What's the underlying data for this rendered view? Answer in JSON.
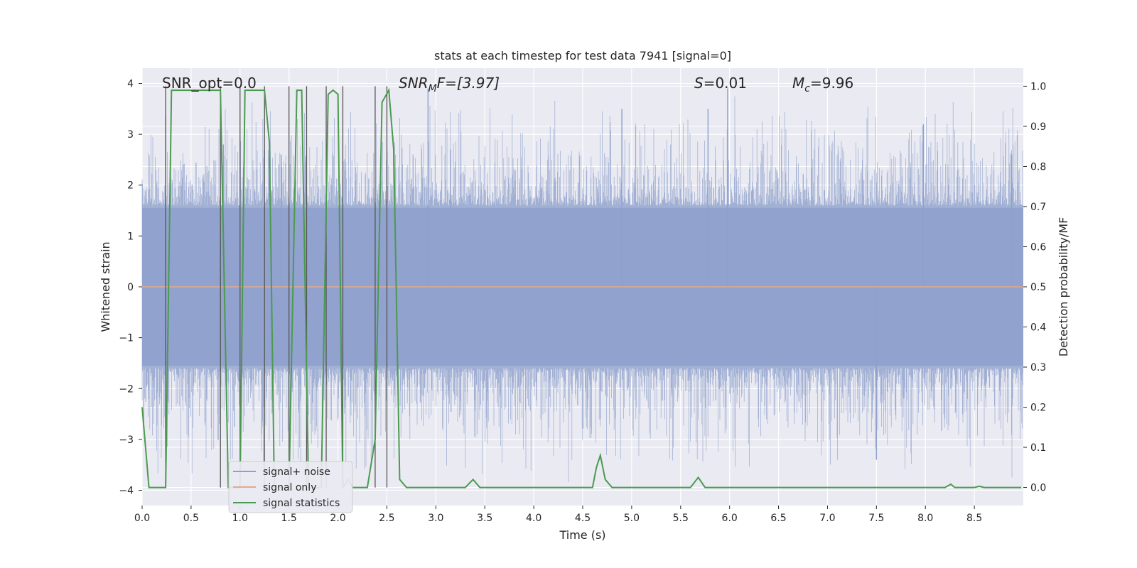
{
  "chart_data": {
    "type": "line",
    "title": "stats at each timestep for test data 7941 [signal=0]",
    "xlabel": "Time (s)",
    "ylabel_left": "Whitened strain",
    "ylabel_right": "Detection probability/MF",
    "xlim": [
      0.0,
      9.0
    ],
    "ylim_left": [
      -4.3,
      4.3
    ],
    "ylim_right": [
      -0.045,
      1.045
    ],
    "x_ticks": [
      0.0,
      0.5,
      1.0,
      1.5,
      2.0,
      2.5,
      3.0,
      3.5,
      4.0,
      4.5,
      5.0,
      5.5,
      6.0,
      6.5,
      7.0,
      7.5,
      8.0,
      8.5
    ],
    "x_tick_labels": [
      "0.0",
      "0.5",
      "1.0",
      "1.5",
      "2.0",
      "2.5",
      "3.0",
      "3.5",
      "4.0",
      "4.5",
      "5.0",
      "5.5",
      "6.0",
      "6.5",
      "7.0",
      "7.5",
      "8.0",
      "8.5"
    ],
    "y_left_ticks": [
      4,
      3,
      2,
      1,
      0,
      -1,
      -2,
      -3,
      -4
    ],
    "y_left_tick_labels": [
      "4",
      "3",
      "2",
      "1",
      "0",
      "−1",
      "−2",
      "−3",
      "−4"
    ],
    "y_right_ticks": [
      1.0,
      0.9,
      0.8,
      0.7,
      0.6,
      0.5,
      0.4,
      0.3,
      0.2,
      0.1,
      0.0
    ],
    "y_right_tick_labels": [
      "1.0",
      "0.9",
      "0.8",
      "0.7",
      "0.6",
      "0.5",
      "0.4",
      "0.3",
      "0.2",
      "0.1",
      "0.0"
    ],
    "annotations": {
      "snr_opt": "SNR_opt=0.0",
      "snr_mf_base": "SNR",
      "snr_mf_sub": "M",
      "snr_mf_rest": "F=[3.97]",
      "s_label": "S",
      "s_value": "=0.01",
      "mc_base": "M",
      "mc_sub": "c",
      "mc_value": "=9.96"
    },
    "vertical_lines_x": [
      0.24,
      0.8,
      1.0,
      1.25,
      1.5,
      1.68,
      1.88,
      2.05,
      2.38,
      2.5
    ],
    "series": [
      {
        "name": "signal+ noise",
        "color": "#8da0cb",
        "axis": "left",
        "kind": "noise-band",
        "envelope_typical": 1.6,
        "envelope_peak": 3.9,
        "spike_times": [
          0.83,
          1.42,
          2.92,
          3.15,
          4.9,
          5.78,
          5.98,
          7.5,
          7.98,
          8.88
        ],
        "spike_values": [
          2.8,
          2.6,
          3.9,
          2.7,
          3.5,
          3.5,
          3.9,
          -3.4,
          3.2,
          2.6
        ]
      },
      {
        "name": "signal only",
        "color": "#e5a98a",
        "axis": "left",
        "kind": "flat",
        "value": 0.0
      },
      {
        "name": "signal statistics",
        "color": "#4c9a50",
        "axis": "right",
        "kind": "line",
        "x": [
          0.0,
          0.07,
          0.12,
          0.24,
          0.3,
          0.8,
          0.88,
          0.93,
          1.0,
          1.05,
          1.1,
          1.25,
          1.3,
          1.35,
          1.5,
          1.58,
          1.63,
          1.7,
          1.76,
          1.83,
          1.9,
          1.95,
          2.0,
          2.05,
          2.11,
          2.15,
          2.2,
          2.3,
          2.38,
          2.45,
          2.52,
          2.57,
          2.63,
          2.7,
          3.3,
          3.38,
          3.45,
          4.6,
          4.64,
          4.68,
          4.73,
          4.8,
          5.6,
          5.68,
          5.75,
          8.2,
          8.26,
          8.3,
          8.5,
          8.55,
          8.6,
          8.98
        ],
        "y": [
          0.2,
          0.0,
          0.0,
          0.0,
          0.99,
          0.99,
          0.0,
          0.0,
          0.0,
          0.99,
          0.99,
          0.99,
          0.86,
          0.0,
          0.0,
          0.99,
          0.99,
          0.0,
          0.0,
          0.0,
          0.98,
          0.99,
          0.98,
          0.0,
          0.02,
          0.0,
          0.0,
          0.0,
          0.12,
          0.96,
          0.99,
          0.84,
          0.02,
          0.0,
          0.0,
          0.02,
          0.0,
          0.0,
          0.05,
          0.08,
          0.02,
          0.0,
          0.0,
          0.025,
          0.0,
          0.0,
          0.008,
          0.0,
          0.0,
          0.003,
          0.0,
          0.0
        ]
      }
    ],
    "legend_position": "lower-left"
  }
}
